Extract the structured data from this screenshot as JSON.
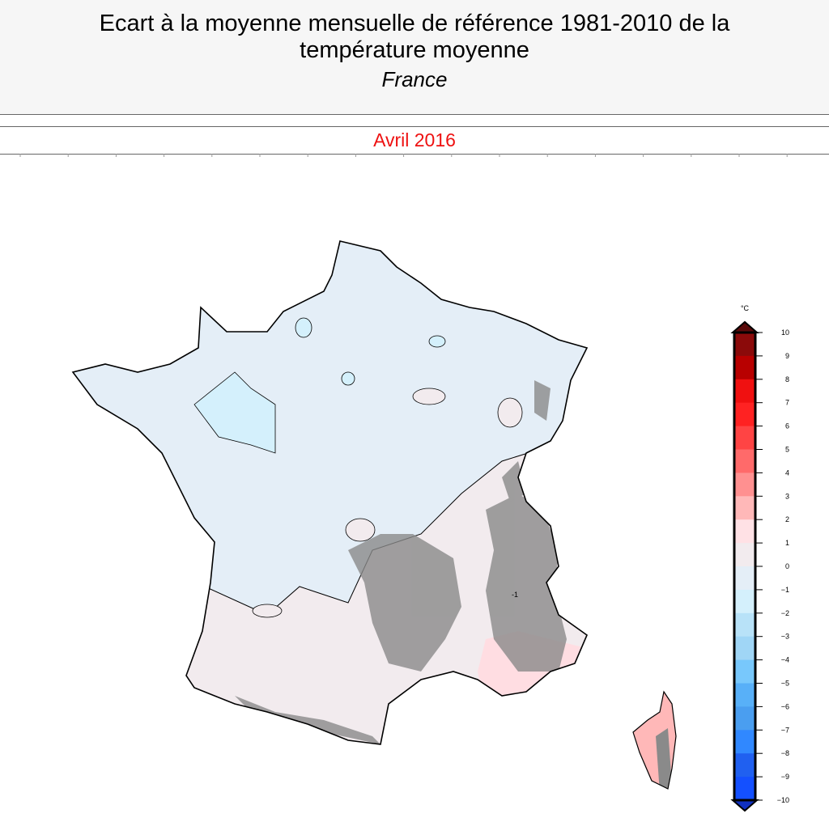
{
  "header": {
    "title": "Ecart à la moyenne mensuelle de référence 1981-2010 de la température moyenne",
    "region": "France"
  },
  "period": "Avril 2016",
  "legend": {
    "unit": "°C",
    "ticks": [
      10,
      9,
      8,
      7,
      6,
      5,
      4,
      3,
      2,
      1,
      0,
      -1,
      -2,
      -3,
      -4,
      -5,
      -6,
      -7,
      -8,
      -9,
      -10
    ],
    "colors": [
      "#8b0a0a",
      "#b80000",
      "#f01010",
      "#ff2222",
      "#ff4444",
      "#ff6a6a",
      "#ff9090",
      "#ffb8b8",
      "#ffe1e5",
      "#f2ebee",
      "#e4eef7",
      "#d4f0fc",
      "#b8e2f8",
      "#a0d6f6",
      "#78c8fc",
      "#58b0f8",
      "#4a9ef0",
      "#3088ff",
      "#2060f0",
      "#1450ff"
    ],
    "over_color": "#5a0a0a",
    "under_color": "#1030c0"
  },
  "map": {
    "contour_label": "-1",
    "north_color": "#e4eef7",
    "south_color": "#f2ebee",
    "relief_color": "#8a8a8a"
  }
}
